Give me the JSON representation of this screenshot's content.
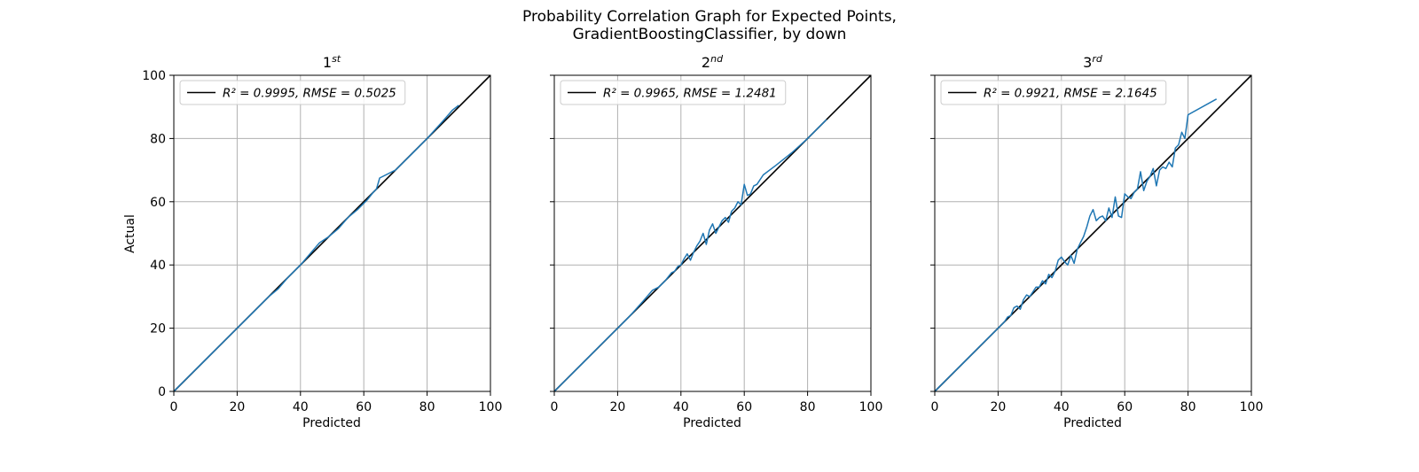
{
  "figure": {
    "title_line1": "Probability Correlation Graph for Expected Points,",
    "title_line2": "GradientBoostingClassifier, by down"
  },
  "colors": {
    "series": "#1f77b4",
    "reference": "#000000",
    "grid": "#b0b0b0"
  },
  "chart_data": [
    {
      "type": "line",
      "title": "1",
      "title_sup": "st",
      "xlabel": "Predicted",
      "ylabel": "Actual",
      "xlim": [
        0,
        100
      ],
      "ylim": [
        0,
        100
      ],
      "xticks": [
        0,
        20,
        40,
        60,
        80,
        100
      ],
      "yticks": [
        0,
        20,
        40,
        60,
        80,
        100
      ],
      "grid": true,
      "legend_position": "top-left",
      "series": [
        {
          "name": "R² = 0.9995, RMSE = 0.5025",
          "role": "reference",
          "x": [
            0,
            100
          ],
          "y": [
            0,
            100
          ]
        },
        {
          "role": "observed",
          "x": [
            0,
            5,
            10,
            15,
            20,
            25,
            30,
            33,
            36,
            40,
            43,
            46,
            49,
            52,
            55,
            58,
            61,
            63,
            64,
            65,
            70,
            75,
            80,
            85,
            88,
            90
          ],
          "y": [
            0,
            5,
            10,
            15,
            20,
            25,
            30,
            32.5,
            36,
            40,
            43.5,
            47,
            49,
            51.5,
            55,
            57.5,
            60.5,
            63,
            64,
            67.5,
            70,
            75,
            80,
            85.5,
            89,
            90.5
          ]
        }
      ]
    },
    {
      "type": "line",
      "title": "2",
      "title_sup": "nd",
      "xlabel": "Predicted",
      "ylabel": "",
      "xlim": [
        0,
        100
      ],
      "ylim": [
        0,
        100
      ],
      "xticks": [
        0,
        20,
        40,
        60,
        80,
        100
      ],
      "yticks": [
        0,
        20,
        40,
        60,
        80,
        100
      ],
      "grid": true,
      "legend_position": "top-left",
      "series": [
        {
          "name": "R² = 0.9965, RMSE = 1.2481",
          "role": "reference",
          "x": [
            0,
            100
          ],
          "y": [
            0,
            100
          ]
        },
        {
          "role": "observed",
          "x": [
            0,
            5,
            10,
            15,
            20,
            24,
            28,
            31,
            33,
            35,
            37,
            38,
            39,
            40,
            41,
            42,
            43,
            44,
            45,
            46,
            47,
            48,
            49,
            50,
            51,
            52,
            53,
            54,
            55,
            56,
            57,
            58,
            59,
            60,
            61,
            62,
            63,
            64,
            66,
            70,
            75,
            80,
            86
          ],
          "y": [
            0,
            5,
            10,
            15,
            20,
            24,
            28.5,
            32,
            33,
            35,
            37.5,
            38,
            39.5,
            40,
            42,
            43.5,
            41.5,
            44,
            46,
            47.5,
            50,
            46.5,
            51,
            53,
            50,
            52,
            54,
            55,
            53.5,
            57,
            58,
            60,
            59,
            65.5,
            62,
            62.5,
            65,
            65.5,
            68.5,
            71.5,
            75.5,
            80,
            86
          ]
        }
      ]
    },
    {
      "type": "line",
      "title": "3",
      "title_sup": "rd",
      "xlabel": "Predicted",
      "ylabel": "",
      "xlim": [
        0,
        100
      ],
      "ylim": [
        0,
        100
      ],
      "xticks": [
        0,
        20,
        40,
        60,
        80,
        100
      ],
      "yticks": [
        0,
        20,
        40,
        60,
        80,
        100
      ],
      "grid": true,
      "legend_position": "top-left",
      "series": [
        {
          "name": "R² = 0.9921, RMSE = 2.1645",
          "role": "reference",
          "x": [
            0,
            100
          ],
          "y": [
            0,
            100
          ]
        },
        {
          "role": "observed",
          "x": [
            0,
            5,
            10,
            15,
            20,
            22,
            23,
            24,
            25,
            26,
            27,
            28,
            29,
            30,
            31,
            32,
            33,
            34,
            35,
            36,
            37,
            38,
            39,
            40,
            41,
            42,
            43,
            44,
            45,
            46,
            47,
            48,
            49,
            50,
            51,
            52,
            53,
            54,
            55,
            56,
            57,
            58,
            59,
            60,
            61,
            62,
            63,
            64,
            65,
            66,
            67,
            68,
            69,
            70,
            71,
            72,
            73,
            74,
            75,
            76,
            77,
            78,
            79,
            80,
            89
          ],
          "y": [
            0,
            5,
            10,
            15,
            20,
            22,
            23.5,
            24,
            26.5,
            27,
            26,
            29,
            30.5,
            30,
            31.5,
            33,
            33,
            35,
            34,
            37,
            36,
            38,
            41.5,
            42.5,
            41,
            40,
            43,
            40.5,
            45,
            47,
            49,
            52,
            55.5,
            57.5,
            54,
            55,
            55.5,
            54,
            58,
            55,
            61.5,
            55.5,
            55,
            62.5,
            61.5,
            61,
            63,
            64,
            69.5,
            63.5,
            66.5,
            68,
            70.5,
            65,
            70,
            71,
            70.5,
            72.5,
            71,
            77,
            78,
            82,
            80,
            87.5,
            92.5
          ]
        }
      ]
    }
  ]
}
